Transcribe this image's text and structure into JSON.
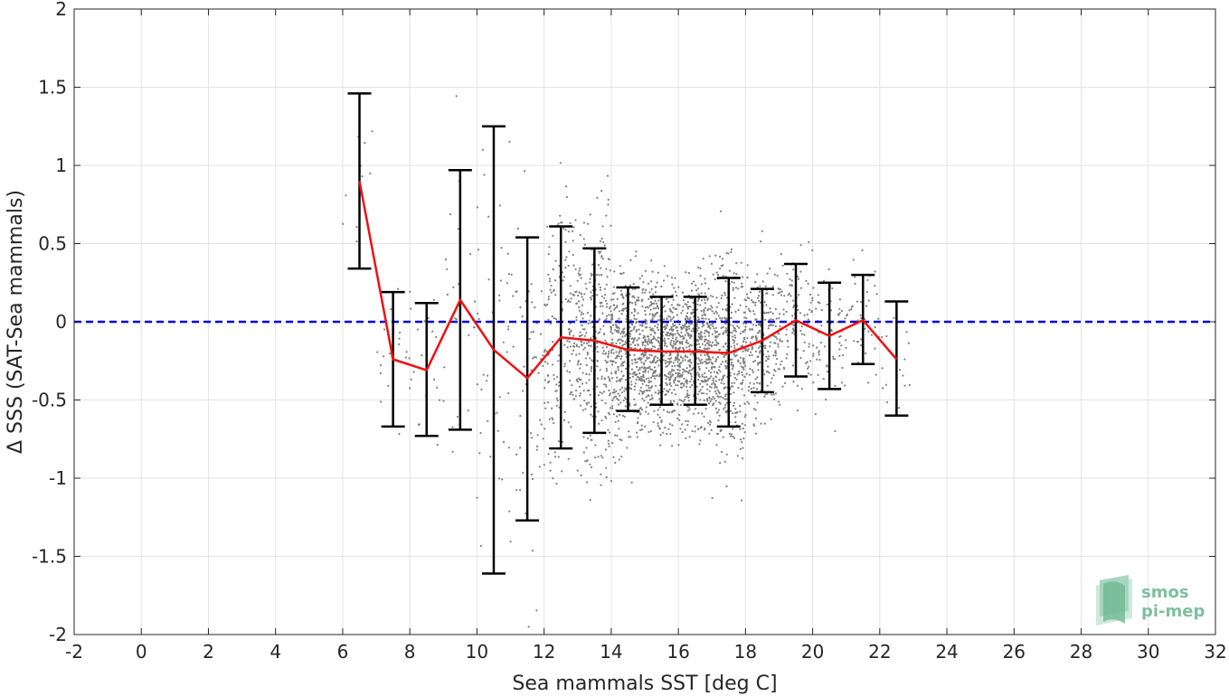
{
  "chart_data": {
    "type": "scatter",
    "title": "",
    "xlabel": "Sea mammals SST [deg C]",
    "ylabel": "Δ SSS (SAT-Sea mammals)",
    "xlim": [
      -2,
      32
    ],
    "ylim": [
      -2,
      2
    ],
    "xticks": [
      "-2",
      "0",
      "2",
      "4",
      "6",
      "8",
      "10",
      "12",
      "14",
      "16",
      "18",
      "20",
      "22",
      "24",
      "26",
      "28",
      "30",
      "32"
    ],
    "yticks": [
      "2",
      "1.5",
      "1",
      "0.5",
      "0",
      "-0.5",
      "-1",
      "-1.5",
      "-2"
    ],
    "grid": true,
    "reference_line": {
      "y": 0,
      "color": "#0000dd",
      "style": "dashed"
    },
    "scatter_color": "#808080",
    "series": [
      {
        "kind": "mean_line",
        "color": "#ee1111",
        "x": [
          6.5,
          7.5,
          8.5,
          9.5,
          10.5,
          11.5,
          12.5,
          13.5,
          14.5,
          15.5,
          16.5,
          17.5,
          18.5,
          19.5,
          20.5,
          21.5,
          22.5
        ],
        "y": [
          0.9,
          -0.24,
          -0.31,
          0.14,
          -0.18,
          -0.36,
          -0.1,
          -0.12,
          -0.18,
          -0.19,
          -0.19,
          -0.2,
          -0.12,
          0.01,
          -0.09,
          0.01,
          -0.24
        ]
      },
      {
        "kind": "error_bars",
        "color": "#000000",
        "x": [
          6.5,
          7.5,
          8.5,
          9.5,
          10.5,
          11.5,
          12.5,
          13.5,
          14.5,
          15.5,
          16.5,
          17.5,
          18.5,
          19.5,
          20.5,
          21.5,
          22.5
        ],
        "upper": [
          1.46,
          0.19,
          0.12,
          0.97,
          1.25,
          0.54,
          0.61,
          0.47,
          0.22,
          0.16,
          0.16,
          0.28,
          0.21,
          0.37,
          0.25,
          0.3,
          0.13
        ],
        "lower": [
          0.34,
          -0.67,
          -0.73,
          -0.69,
          -1.61,
          -1.27,
          -0.81,
          -0.71,
          -0.57,
          -0.53,
          -0.53,
          -0.67,
          -0.45,
          -0.35,
          -0.43,
          -0.27,
          -0.6
        ]
      }
    ]
  },
  "logo": {
    "line1": "smos",
    "line2": "pi-mep"
  }
}
